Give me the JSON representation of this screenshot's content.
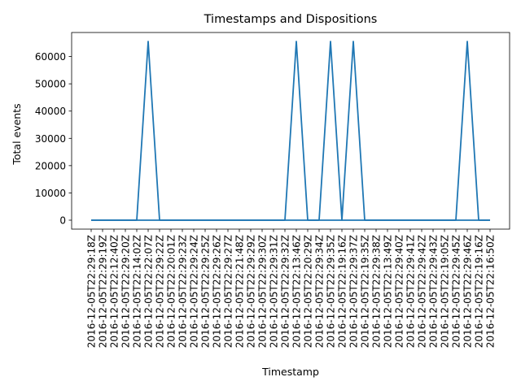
{
  "chart_data": {
    "type": "line",
    "title": "Timestamps and Dispositions",
    "xlabel": "Timestamp",
    "ylabel": "Total events",
    "ylim": [
      -3277,
      68813
    ],
    "yticks": [
      0,
      10000,
      20000,
      30000,
      40000,
      50000,
      60000
    ],
    "ytick_labels": [
      "0",
      "10000",
      "20000",
      "30000",
      "40000",
      "50000",
      "60000"
    ],
    "grid": false,
    "legend": "none",
    "colors": {
      "line": "#1f77b4",
      "axis": "#000000",
      "background": "#ffffff"
    },
    "categories": [
      "2016-12-05T22:29:18Z",
      "2016-12-05T22:29:19Z",
      "2016-12-05T22:12:40Z",
      "2016-12-05T22:29:20Z",
      "2016-12-05T22:14:02Z",
      "2016-12-05T22:22:07Z",
      "2016-12-05T22:29:22Z",
      "2016-12-05T22:20:01Z",
      "2016-12-05T22:29:23Z",
      "2016-12-05T22:29:24Z",
      "2016-12-05T22:29:25Z",
      "2016-12-05T22:29:26Z",
      "2016-12-05T22:29:27Z",
      "2016-12-05T22:21:48Z",
      "2016-12-05T22:29:29Z",
      "2016-12-05T22:29:30Z",
      "2016-12-05T22:29:31Z",
      "2016-12-05T22:29:32Z",
      "2016-12-05T22:13:46Z",
      "2016-12-05T22:20:29Z",
      "2016-12-05T22:29:34Z",
      "2016-12-05T22:29:35Z",
      "2016-12-05T22:19:16Z",
      "2016-12-05T22:29:37Z",
      "2016-12-05T22:19:35Z",
      "2016-12-05T22:29:38Z",
      "2016-12-05T22:13:49Z",
      "2016-12-05T22:29:40Z",
      "2016-12-05T22:29:41Z",
      "2016-12-05T22:29:42Z",
      "2016-12-05T22:29:43Z",
      "2016-12-05T22:19:05Z",
      "2016-12-05T22:29:45Z",
      "2016-12-05T22:29:46Z",
      "2016-12-05T22:19:16Z",
      "2016-12-05T22:16:50Z"
    ],
    "series": [
      {
        "segments": [
          [
            0,
            0,
            0,
            0,
            0,
            0,
            0,
            0,
            0,
            0,
            0,
            0,
            0,
            0,
            0,
            0,
            0,
            0,
            0,
            0,
            0,
            0,
            0,
            0,
            0,
            0,
            0,
            0,
            0,
            0,
            0,
            0,
            0,
            0,
            0,
            0
          ],
          [
            0,
            0,
            0,
            0,
            0,
            65535,
            0,
            0,
            0,
            0,
            0,
            0,
            0,
            0,
            0,
            0,
            0,
            0,
            65535,
            0,
            0,
            65535,
            0,
            65535,
            0,
            0,
            0,
            0,
            0,
            0,
            0,
            0,
            0,
            65535,
            0,
            0
          ]
        ]
      }
    ]
  }
}
